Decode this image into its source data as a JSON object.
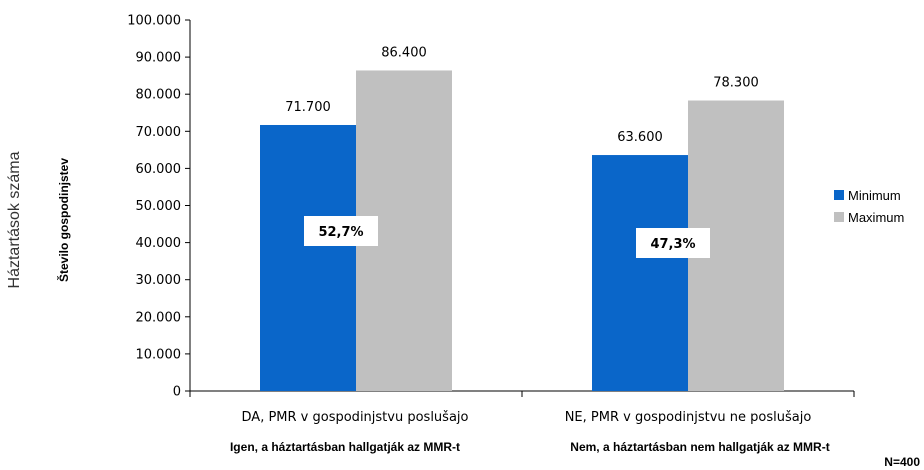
{
  "chart_data": {
    "type": "bar",
    "ylabel": "Háztartások száma",
    "ylabel_secondary": "Število gospodinjstev",
    "ylim": [
      0,
      100000
    ],
    "yticks": [
      "0",
      "10.000",
      "20.000",
      "30.000",
      "40.000",
      "50.000",
      "60.000",
      "70.000",
      "80.000",
      "90.000",
      "100.000"
    ],
    "categories": [
      "DA, PMR v gospodinjstvu poslušajo",
      "NE, PMR v gospodinjstvu ne poslušajo"
    ],
    "group_labels": [
      "Igen, a háztartásban hallgatják az MMR-t",
      "Nem, a háztartásban nem hallgatják az MMR-t"
    ],
    "series": [
      {
        "name": "Minimum",
        "values": [
          71700,
          63600
        ],
        "value_labels": [
          "71.700",
          "63.600"
        ],
        "color": "#0a66c9"
      },
      {
        "name": "Maximum",
        "values": [
          86400,
          78300
        ],
        "value_labels": [
          "86.400",
          "78.300"
        ],
        "color": "#c0c0c0"
      }
    ],
    "share_labels": [
      "52,7%",
      "47,3%"
    ],
    "legend_position": "right",
    "grid": false,
    "note": "N=400"
  }
}
